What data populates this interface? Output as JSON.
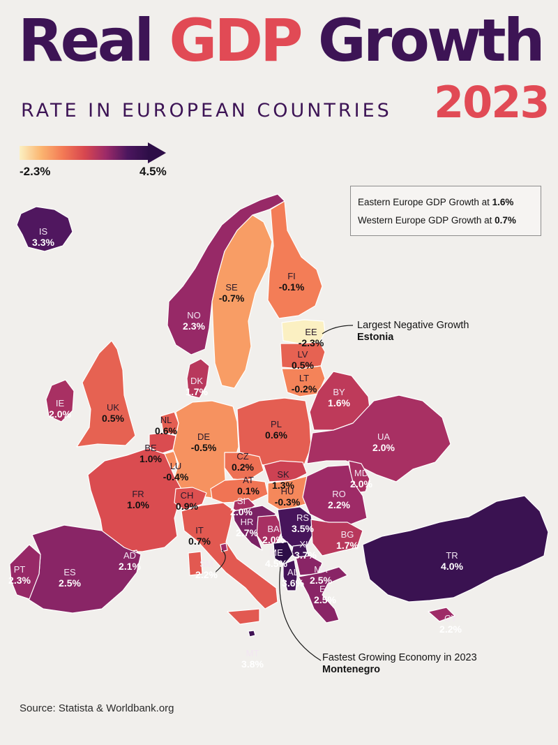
{
  "title": {
    "part1": "Real ",
    "part2": "GDP",
    "part3": " Growth",
    "color_dark": "#3d1455",
    "color_accent": "#e14a55"
  },
  "subtitle": "RATE IN EUROPEAN COUNTRIES",
  "year": "2023",
  "legend": {
    "min_label": "-2.3%",
    "max_label": "4.5%",
    "min_value": -2.3,
    "max_value": 4.5,
    "colors": [
      "#fbf0c2",
      "#fbb570",
      "#f37a55",
      "#d8474f",
      "#9c2a68",
      "#4b165e",
      "#2d0e47"
    ]
  },
  "info": {
    "eastern_text": "Eastern Europe GDP Growth at ",
    "eastern_value": "1.6%",
    "western_text": "Western Europe GDP Growth at ",
    "western_value": "0.7%"
  },
  "callouts": {
    "negative_title": "Largest Negative Growth",
    "negative_country": "Estonia",
    "fastest_title": "Fastest Growing Economy in 2023",
    "fastest_country": "Montenegro"
  },
  "source": "Source: Statista & Worldbank.org",
  "countries": [
    {
      "code": "IS",
      "value": "3.3%",
      "growth": 3.3
    },
    {
      "code": "NO",
      "value": "2.3%",
      "growth": 2.3
    },
    {
      "code": "SE",
      "value": "-0.7%",
      "growth": -0.7
    },
    {
      "code": "FI",
      "value": "-0.1%",
      "growth": -0.1
    },
    {
      "code": "EE",
      "value": "-2.3%",
      "growth": -2.3
    },
    {
      "code": "LV",
      "value": "0.5%",
      "growth": 0.5
    },
    {
      "code": "LT",
      "value": "-0.2%",
      "growth": -0.2
    },
    {
      "code": "DK",
      "value": "1.7%",
      "growth": 1.7
    },
    {
      "code": "IE",
      "value": "2.0%",
      "growth": 2.0
    },
    {
      "code": "UK",
      "value": "0.5%",
      "growth": 0.5
    },
    {
      "code": "NL",
      "value": "0.6%",
      "growth": 0.6
    },
    {
      "code": "BE",
      "value": "1.0%",
      "growth": 1.0
    },
    {
      "code": "LU",
      "value": "-0.4%",
      "growth": -0.4
    },
    {
      "code": "DE",
      "value": "-0.5%",
      "growth": -0.5
    },
    {
      "code": "PL",
      "value": "0.6%",
      "growth": 0.6
    },
    {
      "code": "BY",
      "value": "1.6%",
      "growth": 1.6
    },
    {
      "code": "UA",
      "value": "2.0%",
      "growth": 2.0
    },
    {
      "code": "CZ",
      "value": "0.2%",
      "growth": 0.2
    },
    {
      "code": "SK",
      "value": "1.3%",
      "growth": 1.3
    },
    {
      "code": "AT",
      "value": "0.1%",
      "growth": 0.1
    },
    {
      "code": "HU",
      "value": "-0.3%",
      "growth": -0.3
    },
    {
      "code": "MD",
      "value": "2.0%",
      "growth": 2.0
    },
    {
      "code": "RO",
      "value": "2.2%",
      "growth": 2.2
    },
    {
      "code": "FR",
      "value": "1.0%",
      "growth": 1.0
    },
    {
      "code": "CH",
      "value": "0.9%",
      "growth": 0.9
    },
    {
      "code": "SI",
      "value": "2.0%",
      "growth": 2.0
    },
    {
      "code": "HR",
      "value": "2.7%",
      "growth": 2.7
    },
    {
      "code": "BA",
      "value": "2.0%",
      "growth": 2.0
    },
    {
      "code": "RS",
      "value": "3.5%",
      "growth": 3.5
    },
    {
      "code": "XK",
      "value": "3.7%",
      "growth": 3.7
    },
    {
      "code": "ME",
      "value": "4.5%",
      "growth": 4.5
    },
    {
      "code": "AL",
      "value": "3.6%",
      "growth": 3.6
    },
    {
      "code": "MK",
      "value": "2.5%",
      "growth": 2.5
    },
    {
      "code": "BG",
      "value": "1.7%",
      "growth": 1.7
    },
    {
      "code": "EL",
      "value": "2.5%",
      "growth": 2.5
    },
    {
      "code": "TR",
      "value": "4.0%",
      "growth": 4.0
    },
    {
      "code": "CY",
      "value": "2.2%",
      "growth": 2.2
    },
    {
      "code": "IT",
      "value": "0.7%",
      "growth": 0.7
    },
    {
      "code": "SM",
      "value": "2.2%",
      "growth": 2.2
    },
    {
      "code": "AD",
      "value": "2.1%",
      "growth": 2.1
    },
    {
      "code": "ES",
      "value": "2.5%",
      "growth": 2.5
    },
    {
      "code": "PT",
      "value": "2.3%",
      "growth": 2.3
    },
    {
      "code": "MT",
      "value": "3.8%",
      "growth": 3.8
    }
  ]
}
